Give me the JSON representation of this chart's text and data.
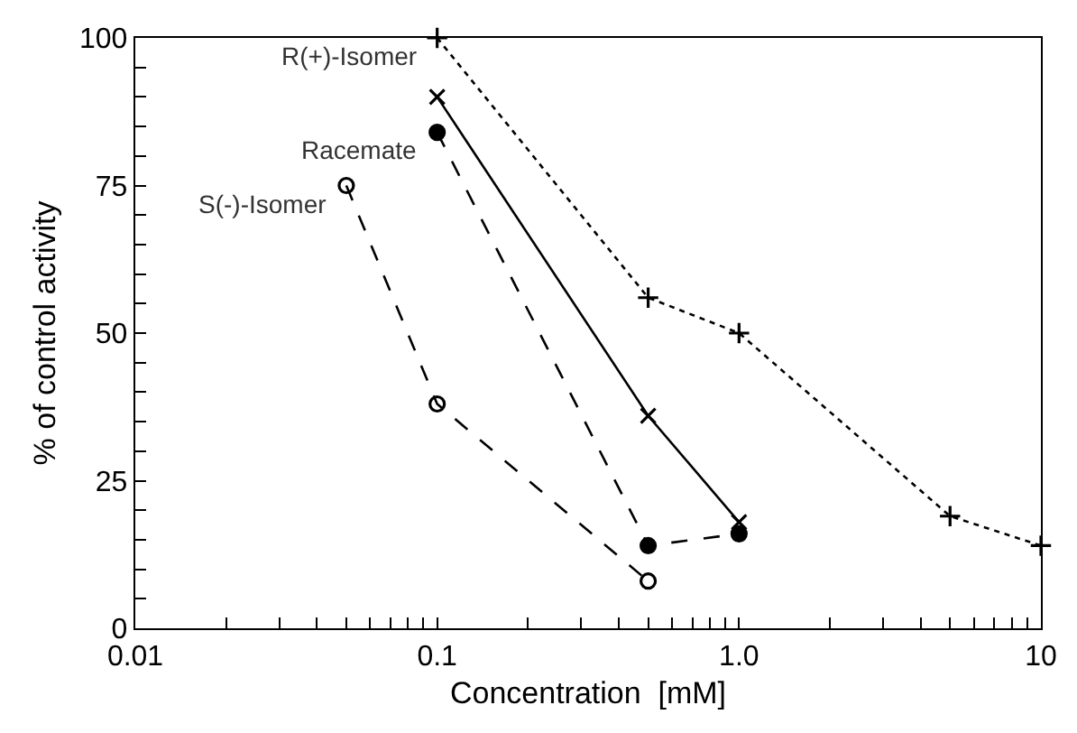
{
  "chart_data": {
    "type": "line",
    "xlabel": "Concentration  [mM]",
    "ylabel": "% of control activity",
    "log": "x",
    "legend": false,
    "xlim": [
      0.01,
      10
    ],
    "ylim": [
      0,
      100
    ],
    "xticks": [
      0.01,
      {
        "value": 0.02,
        "label": null
      },
      {
        "value": 0.03,
        "label": null
      },
      {
        "value": 0.04,
        "label": null
      },
      {
        "value": 0.05,
        "label": null
      },
      {
        "value": 0.06,
        "label": null
      },
      {
        "value": 0.07,
        "label": null
      },
      {
        "value": 0.08,
        "label": null
      },
      {
        "value": 0.09,
        "label": null
      },
      0.1,
      {
        "value": 0.2,
        "label": null
      },
      {
        "value": 0.3,
        "label": null
      },
      {
        "value": 0.4,
        "label": null
      },
      {
        "value": 0.5,
        "label": null
      },
      {
        "value": 0.6,
        "label": null
      },
      {
        "value": 0.7,
        "label": null
      },
      {
        "value": 0.8,
        "label": null
      },
      {
        "value": 0.9,
        "label": null
      },
      {
        "value": 1,
        "label": "1.0"
      },
      {
        "value": 2,
        "label": null
      },
      {
        "value": 3,
        "label": null
      },
      {
        "value": 4,
        "label": null
      },
      {
        "value": 5,
        "label": null
      },
      {
        "value": 6,
        "label": null
      },
      {
        "value": 7,
        "label": null
      },
      {
        "value": 8,
        "label": null
      },
      {
        "value": 9,
        "label": null
      },
      10
    ],
    "yticks": [
      0,
      {
        "value": 5,
        "label": null
      },
      {
        "value": 10,
        "label": null
      },
      {
        "value": 15,
        "label": null
      },
      {
        "value": 20,
        "label": null
      },
      25,
      {
        "value": 30,
        "label": null
      },
      {
        "value": 35,
        "label": null
      },
      {
        "value": 40,
        "label": null
      },
      {
        "value": 45,
        "label": null
      },
      50,
      {
        "value": 55,
        "label": null
      },
      {
        "value": 60,
        "label": null
      },
      {
        "value": 65,
        "label": null
      },
      {
        "value": 70,
        "label": null
      },
      75,
      {
        "value": 80,
        "label": null
      },
      {
        "value": 85,
        "label": null
      },
      {
        "value": 90,
        "label": null
      },
      {
        "value": 95,
        "label": null
      },
      100
    ],
    "series": [
      {
        "name": "R(+)-Isomer",
        "color": "#000000",
        "x": [
          0.1,
          0.5,
          1,
          5,
          10
        ],
        "values": [
          100,
          56,
          50,
          19,
          14
        ],
        "marker": "cross",
        "line_style": "dotted"
      },
      {
        "color": "#000000",
        "x": [
          0.1,
          0.5,
          1
        ],
        "values": [
          90,
          36,
          18
        ],
        "marker": "x",
        "line_style": "solid"
      },
      {
        "name": "Racemate",
        "color": "#000000",
        "x": [
          0.1,
          0.5,
          1
        ],
        "values": [
          84,
          14,
          16
        ],
        "marker": "circle",
        "line_style": "dashed"
      },
      {
        "name": "S(-)-Isomer",
        "color": "#000000",
        "x": [
          0.05,
          0.1,
          0.5
        ],
        "values": [
          75,
          38,
          8
        ],
        "marker": "circle-open",
        "line_style": "dashed"
      }
    ]
  }
}
